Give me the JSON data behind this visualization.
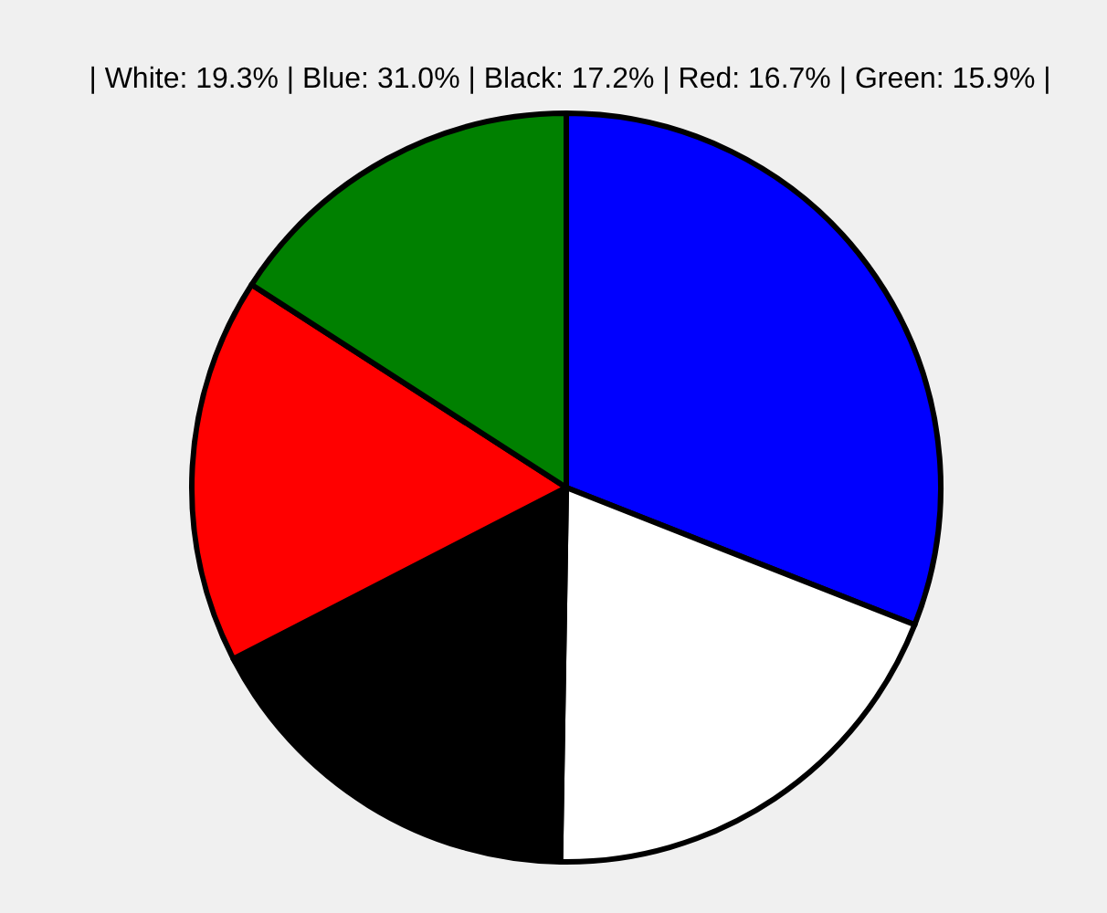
{
  "chart_data": {
    "type": "pie",
    "title": "| White: 19.3% | Blue: 31.0% | Black: 17.2% | Red: 16.7% | Green: 15.9% |",
    "values": [
      31.0,
      19.3,
      17.2,
      16.7,
      15.9
    ],
    "colors": [
      "#0000ff",
      "#ffffff",
      "#000000",
      "#ff0000",
      "#008000"
    ]
  }
}
